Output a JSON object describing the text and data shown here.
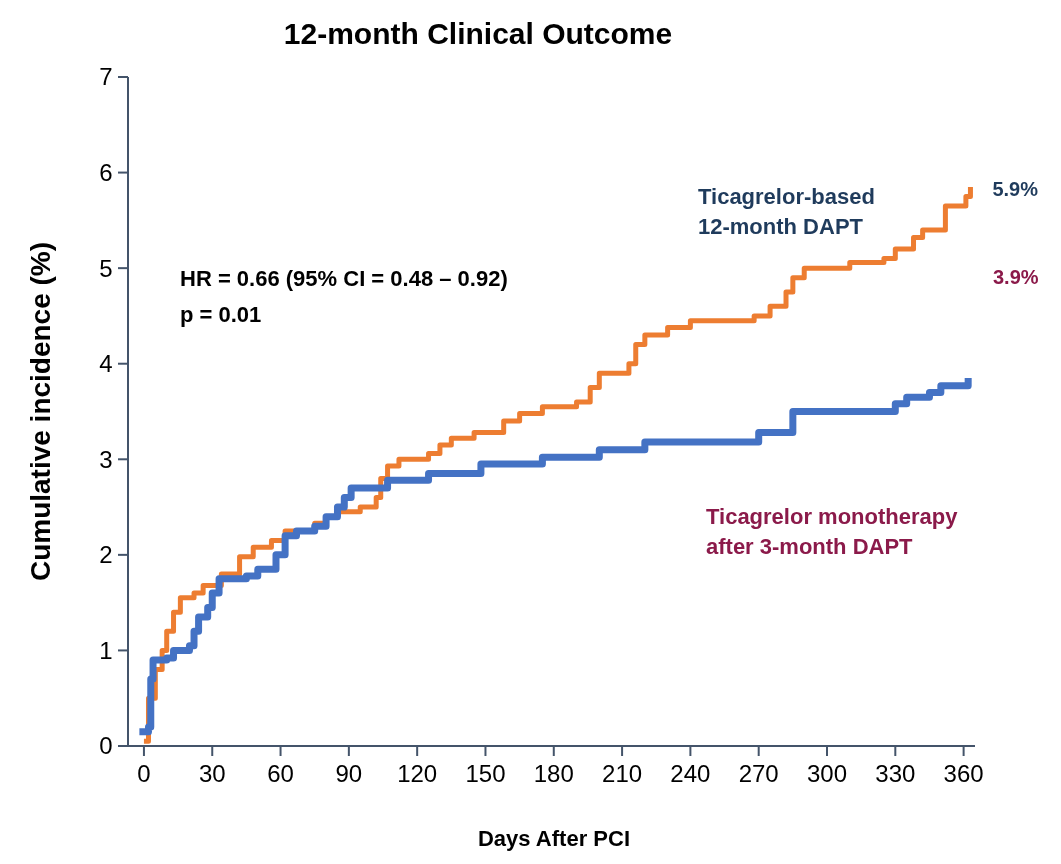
{
  "chart_data": {
    "type": "step",
    "title": "12-month Clinical Outcome",
    "xlabel": "Days After PCI",
    "ylabel": "Cumulative incidence (%)",
    "xlim": [
      -7,
      365
    ],
    "xticks": [
      0,
      30,
      60,
      90,
      120,
      150,
      180,
      210,
      240,
      270,
      300,
      330,
      360
    ],
    "ylim": [
      0,
      7
    ],
    "yticks": [
      0,
      1,
      2,
      3,
      4,
      5,
      6,
      7
    ],
    "annotations": [
      "HR = 0.66 (95% CI = 0.48 – 0.92)",
      "p = 0.01",
      {
        "text": "5.9%",
        "x": 363,
        "y": 5.85
      },
      "3.9%"
    ],
    "series": [
      {
        "name": "Ticagrelor-based\n12-month DAPT",
        "color": "#ed7d31",
        "x": [
          0,
          2,
          5,
          8,
          10,
          13,
          16,
          22,
          26,
          34,
          42,
          48,
          56,
          62,
          75,
          80,
          85,
          95,
          102,
          104,
          107,
          112,
          125,
          130,
          135,
          145,
          158,
          165,
          175,
          190,
          196,
          200,
          213,
          216,
          220,
          230,
          240,
          268,
          275,
          282,
          285,
          290,
          310,
          325,
          330,
          338,
          342,
          352,
          361,
          363
        ],
        "values": [
          0.05,
          0.5,
          0.8,
          1.0,
          1.2,
          1.4,
          1.55,
          1.6,
          1.68,
          1.8,
          1.98,
          2.08,
          2.15,
          2.25,
          2.33,
          2.4,
          2.45,
          2.5,
          2.6,
          2.8,
          2.93,
          3.0,
          3.06,
          3.15,
          3.22,
          3.28,
          3.4,
          3.48,
          3.55,
          3.6,
          3.75,
          3.9,
          4.0,
          4.2,
          4.3,
          4.38,
          4.45,
          4.5,
          4.6,
          4.75,
          4.9,
          5.0,
          5.06,
          5.1,
          5.2,
          5.32,
          5.4,
          5.65,
          5.75,
          5.85
        ]
      },
      {
        "name": "Ticagrelor monotherapy\nafter 3-month DAPT",
        "color": "#4472c4",
        "x": [
          -2,
          2,
          3,
          4,
          10,
          13,
          20,
          22,
          24,
          28,
          30,
          33,
          45,
          50,
          58,
          62,
          67,
          75,
          80,
          85,
          88,
          91,
          107,
          125,
          148,
          175,
          200,
          220,
          270,
          285,
          330,
          335,
          345,
          350,
          362
        ],
        "values": [
          0.15,
          0.2,
          0.7,
          0.9,
          0.92,
          1.0,
          1.05,
          1.2,
          1.35,
          1.45,
          1.6,
          1.75,
          1.78,
          1.85,
          2.0,
          2.2,
          2.25,
          2.3,
          2.4,
          2.5,
          2.6,
          2.7,
          2.78,
          2.85,
          2.95,
          3.02,
          3.1,
          3.18,
          3.28,
          3.5,
          3.58,
          3.65,
          3.7,
          3.77,
          3.85
        ]
      }
    ]
  }
}
